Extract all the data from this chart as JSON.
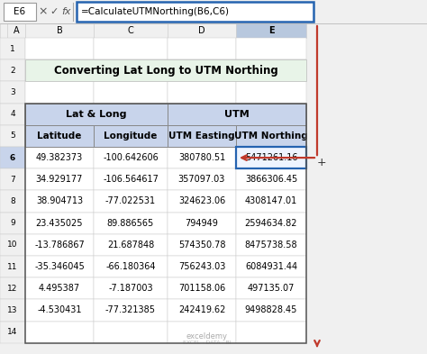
{
  "title": "Converting Lat Long to UTM Northing",
  "formula_bar_cell": "E6",
  "formula_bar_text": "=CalculateUTMNorthing(B6,C6)",
  "col_headers": [
    "A",
    "B",
    "C",
    "D",
    "E"
  ],
  "sub_headers": [
    "Latitude",
    "Longitude",
    "UTM Easting",
    "UTM Northing"
  ],
  "data": [
    [
      "49.382373",
      "-100.642606",
      "380780.51",
      "5471261.16"
    ],
    [
      "34.929177",
      "-106.564617",
      "357097.03",
      "3866306.45"
    ],
    [
      "38.904713",
      "-77.022531",
      "324623.06",
      "4308147.01"
    ],
    [
      "23.435025",
      "89.886565",
      "794949",
      "2594634.82"
    ],
    [
      "-13.786867",
      "21.687848",
      "574350.78",
      "8475738.58"
    ],
    [
      "-35.346045",
      "-66.180364",
      "756243.03",
      "6084931.44"
    ],
    [
      "4.495387",
      "-7.187003",
      "701158.06",
      "497135.07"
    ],
    [
      "-4.530431",
      "-77.321385",
      "242419.62",
      "9498828.45"
    ]
  ],
  "title_bg": "#e8f4e8",
  "group_header_bg": "#c8d4eb",
  "sub_header_bg": "#c8d4eb",
  "selected_cell_border": "#2563b0",
  "arrow_color": "#c0392b",
  "formula_bar_border": "#2563b0",
  "bg_color": "#f0f0f0",
  "col_header_highlight": "#b8c8de",
  "row_header_highlight": "#c8d4eb"
}
